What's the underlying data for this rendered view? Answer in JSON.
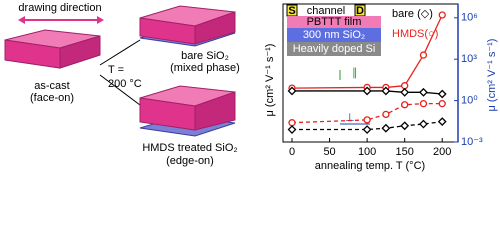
{
  "diagram": {
    "drawing_direction": "drawing direction",
    "temp_label": "T =",
    "temp_value": "200 °C",
    "as_cast": "as-cast",
    "as_cast_sub": "(face-on)",
    "bare": "bare SiO₂",
    "bare_sub": "(mixed phase)",
    "hmds": "HMDS treated SiO₂",
    "hmds_sub": "(edge-on)"
  },
  "chart_data": {
    "type": "line",
    "xlabel": "annealing temp. T (°C)",
    "ylabel": "μ (cm² V⁻¹ s⁻¹)",
    "y2label": "μ (cm² V⁻¹ s⁻¹)",
    "x": [
      0,
      100,
      125,
      150,
      175,
      200
    ],
    "series": [
      {
        "color": "#e8231e",
        "marker": "circle",
        "line_style": "solid",
        "axis": "y2",
        "values": [
          8,
          9,
          9,
          12,
          2000,
          1600000
        ]
      },
      {
        "color": "#000000",
        "marker": "diamond",
        "line_style": "solid",
        "axis": "y2",
        "values": [
          5,
          5,
          5,
          4,
          4,
          3
        ]
      },
      {
        "color": "#e8231e",
        "marker": "circle",
        "line_style": "dashed",
        "axis": "y2",
        "values": [
          0.025,
          0.04,
          0.1,
          0.5,
          0.6,
          0.6
        ]
      },
      {
        "color": "#000000",
        "marker": "diamond",
        "line_style": "dashed",
        "axis": "y2",
        "values": [
          0.008,
          0.008,
          0.01,
          0.015,
          0.02,
          0.03
        ]
      }
    ],
    "xlim": [
      -12,
      221
    ],
    "xticks": [
      0,
      50,
      100,
      150,
      200
    ],
    "y2lim": [
      0.001,
      10000000
    ],
    "y2scale": "log",
    "y2ticks": [
      {
        "value": 0.001,
        "label": "10⁻³"
      },
      {
        "value": 1,
        "label": "10⁰"
      },
      {
        "value": 1000,
        "label": "10³"
      },
      {
        "value": 1000000,
        "label": "10⁶"
      }
    ],
    "legend": {
      "bare": "bare (◇)",
      "hmds": "HMDS(○)"
    },
    "annotations": {
      "parallel": "∥",
      "perpendicular": "⊥"
    },
    "inset": {
      "source": "S",
      "channel": "channel",
      "drain": "D",
      "film": "PBTTT film",
      "oxide": "300 nm SiO₂",
      "gate": "Heavily doped Si"
    }
  }
}
